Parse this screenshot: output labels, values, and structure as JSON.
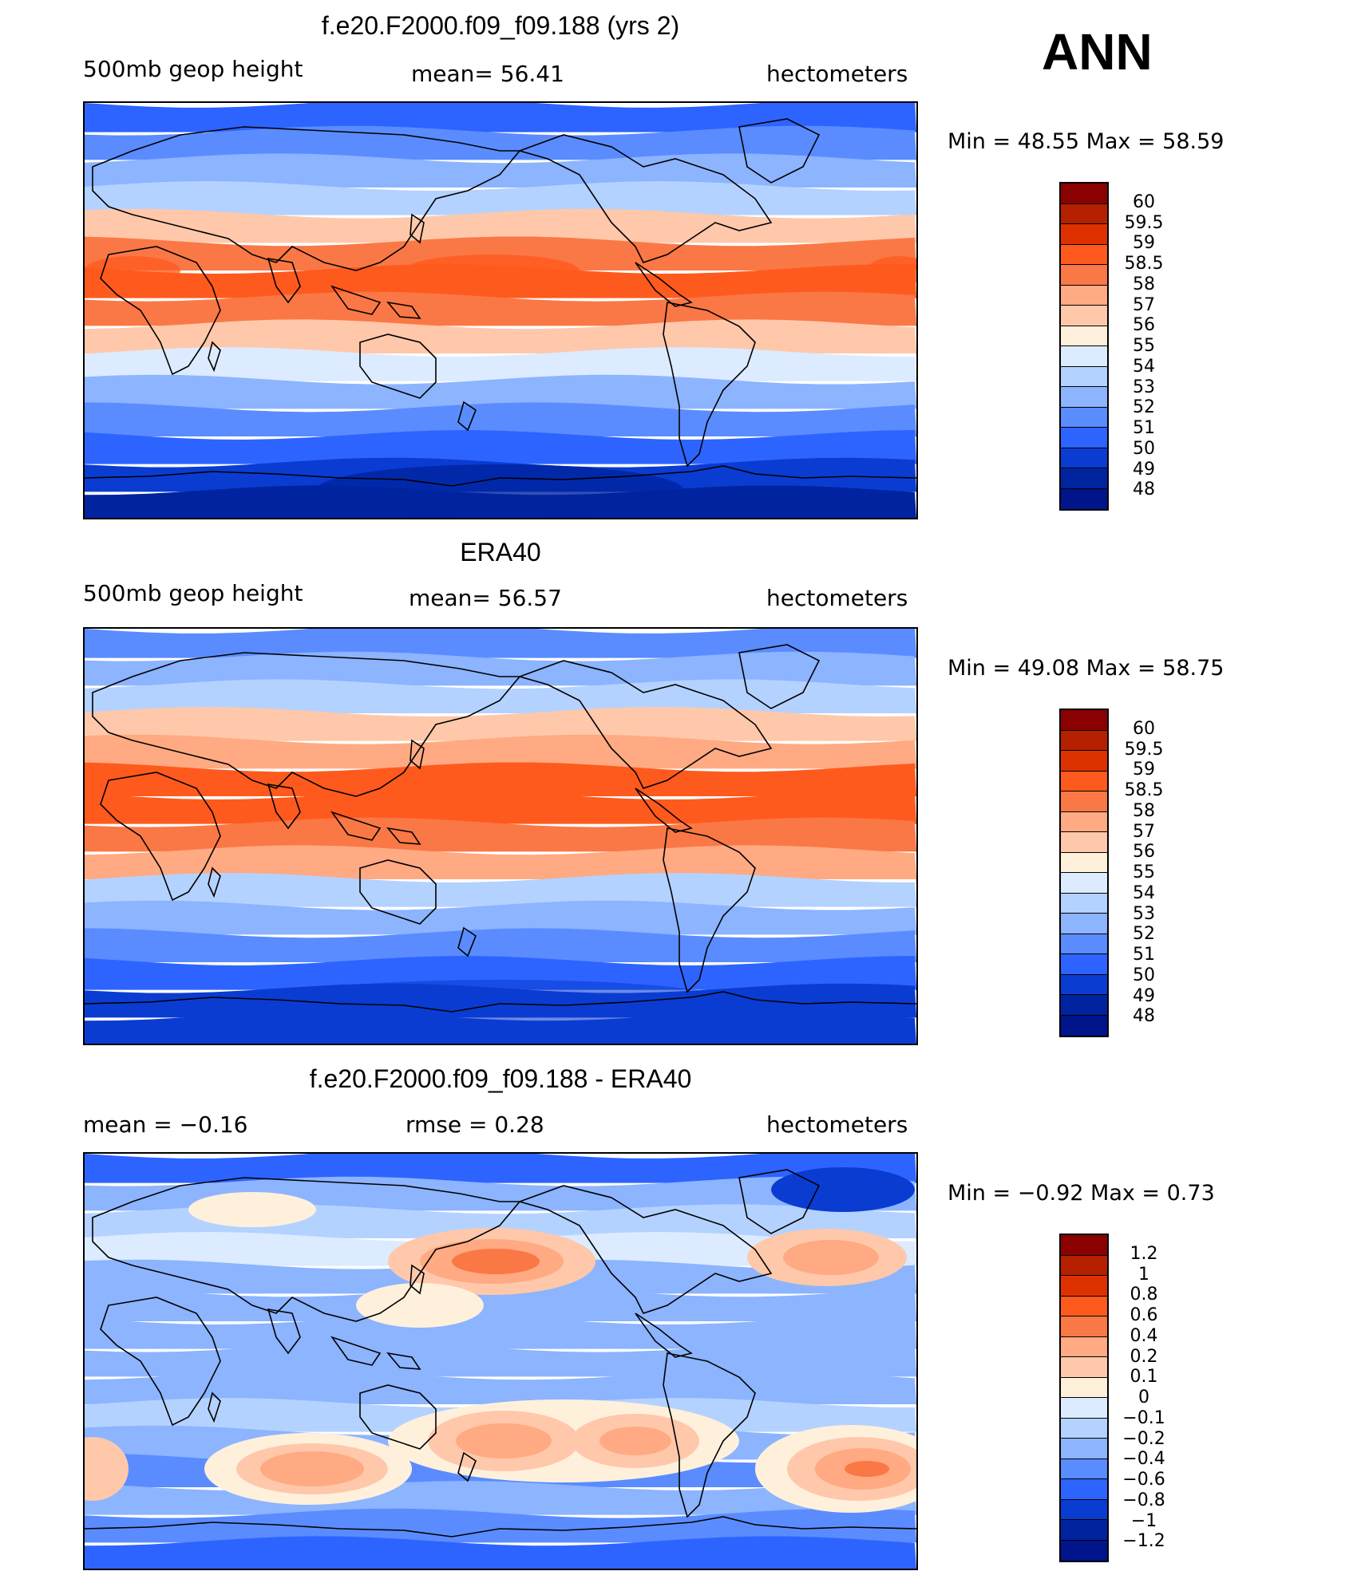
{
  "figure_title": "ANN",
  "units": "hectometers",
  "panels": [
    {
      "id": "model",
      "title": "f.e20.F2000.f09_f09.188 (yrs 2)",
      "left_label": "500mb  geop  height",
      "center_label": "mean=   56.41",
      "right_label": "hectometers",
      "minmax": "Min  =    48.55  Max  =    58.59",
      "colorbar_labels": [
        "60",
        "59.5",
        "59",
        "58.5",
        "58",
        "57",
        "56",
        "55",
        "54",
        "53",
        "52",
        "51",
        "50",
        "49",
        "48"
      ],
      "colorbar_colors": [
        "#8b0000",
        "#b52100",
        "#dd3200",
        "#ff5a1e",
        "#fa7846",
        "#ffaa82",
        "#ffc8aa",
        "#fff0dc",
        "#dcebff",
        "#b4d2ff",
        "#8cb4ff",
        "#5a8cff",
        "#2d64ff",
        "#0a3cd2",
        "#0023a0",
        "#00148c"
      ],
      "band_colors": [
        "#2d64ff",
        "#5a8cff",
        "#8cb4ff",
        "#b4d2ff",
        "#ffc8aa",
        "#fa7846",
        "#ff5a1e",
        "#fa7846",
        "#ffc8aa",
        "#dcebff",
        "#8cb4ff",
        "#5a8cff",
        "#2d64ff",
        "#0a3cd2",
        "#0023a0"
      ]
    },
    {
      "id": "obs",
      "title": "ERA40",
      "left_label": "500mb  geop  height",
      "center_label": "mean=   56.57",
      "right_label": "hectometers",
      "minmax": "Min  =    49.08  Max  =    58.75",
      "colorbar_labels": [
        "60",
        "59.5",
        "59",
        "58.5",
        "58",
        "57",
        "56",
        "55",
        "54",
        "53",
        "52",
        "51",
        "50",
        "49",
        "48"
      ],
      "colorbar_colors": [
        "#8b0000",
        "#b52100",
        "#dd3200",
        "#ff5a1e",
        "#fa7846",
        "#ffaa82",
        "#ffc8aa",
        "#fff0dc",
        "#dcebff",
        "#b4d2ff",
        "#8cb4ff",
        "#5a8cff",
        "#2d64ff",
        "#0a3cd2",
        "#0023a0",
        "#00148c"
      ],
      "band_colors": [
        "#5a8cff",
        "#8cb4ff",
        "#b4d2ff",
        "#ffc8aa",
        "#ffaa82",
        "#ff5a1e",
        "#ff5a1e",
        "#fa7846",
        "#ffaa82",
        "#b4d2ff",
        "#8cb4ff",
        "#5a8cff",
        "#2d64ff",
        "#0a3cd2",
        "#0a3cd2"
      ]
    },
    {
      "id": "diff",
      "title": "f.e20.F2000.f09_f09.188 - ERA40",
      "left_label": "mean  =    −0.16",
      "center_label": "rmse  =     0.28",
      "right_label": "hectometers",
      "minmax": "Min  =    −0.92  Max  =     0.73",
      "colorbar_labels": [
        "1.2",
        "1",
        "0.8",
        "0.6",
        "0.4",
        "0.2",
        "0.1",
        "0",
        "−0.1",
        "−0.2",
        "−0.4",
        "−0.6",
        "−0.8",
        "−1",
        "−1.2"
      ],
      "colorbar_colors": [
        "#8b0000",
        "#b52100",
        "#dd3200",
        "#ff5a1e",
        "#fa7846",
        "#ffaa82",
        "#ffc8aa",
        "#fff0dc",
        "#dcebff",
        "#b4d2ff",
        "#8cb4ff",
        "#5a8cff",
        "#2d64ff",
        "#0a3cd2",
        "#0023a0",
        "#00148c"
      ],
      "band_colors": [
        "#2d64ff",
        "#8cb4ff",
        "#b4d2ff",
        "#dcebff",
        "#8cb4ff",
        "#8cb4ff",
        "#8cb4ff",
        "#8cb4ff",
        "#8cb4ff",
        "#b4d2ff",
        "#8cb4ff",
        "#5a8cff",
        "#8cb4ff",
        "#5a8cff",
        "#2d64ff"
      ]
    }
  ]
}
